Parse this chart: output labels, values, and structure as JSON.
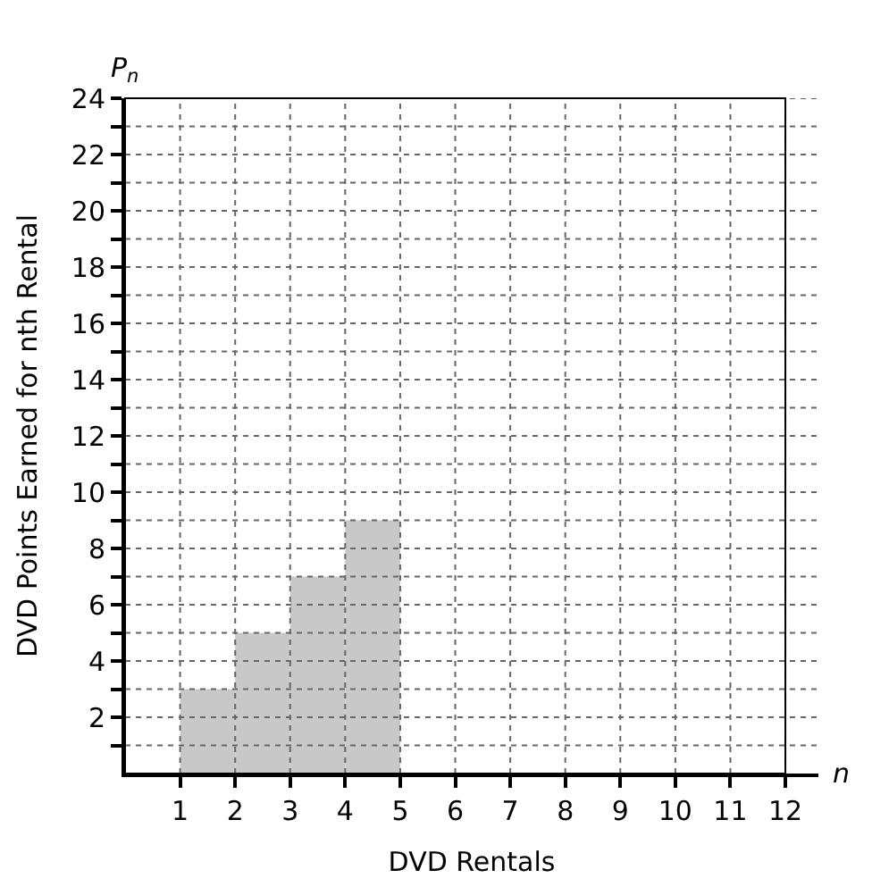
{
  "chart_data": {
    "type": "bar",
    "xlabel": "DVD Rentals",
    "ylabel": "DVD Points Earned for nth Rental",
    "x": [
      1.5,
      2.5,
      3.5,
      4.5
    ],
    "values": [
      3,
      5,
      7,
      9
    ],
    "color": "#c8c8c8",
    "xlim": [
      0,
      12.6
    ],
    "xticks": [
      1,
      2,
      3,
      4,
      5,
      6,
      7,
      8,
      9,
      10,
      11,
      12
    ],
    "ylim": [
      0,
      24
    ],
    "yticks": [
      {
        "value": 1,
        "label": null
      },
      2,
      {
        "value": 3,
        "label": null
      },
      4,
      {
        "value": 5,
        "label": null
      },
      6,
      {
        "value": 7,
        "label": null
      },
      8,
      {
        "value": 9,
        "label": null
      },
      10,
      {
        "value": 11,
        "label": null
      },
      12,
      {
        "value": 13,
        "label": null
      },
      14,
      {
        "value": 15,
        "label": null
      },
      16,
      {
        "value": 17,
        "label": null
      },
      18,
      {
        "value": 19,
        "label": null
      },
      20,
      {
        "value": 21,
        "label": null
      },
      22,
      {
        "value": 23,
        "label": null
      },
      24
    ],
    "grid": true,
    "line_style": "dotted",
    "annotations": [
      "P$_{n}$",
      "n"
    ]
  }
}
